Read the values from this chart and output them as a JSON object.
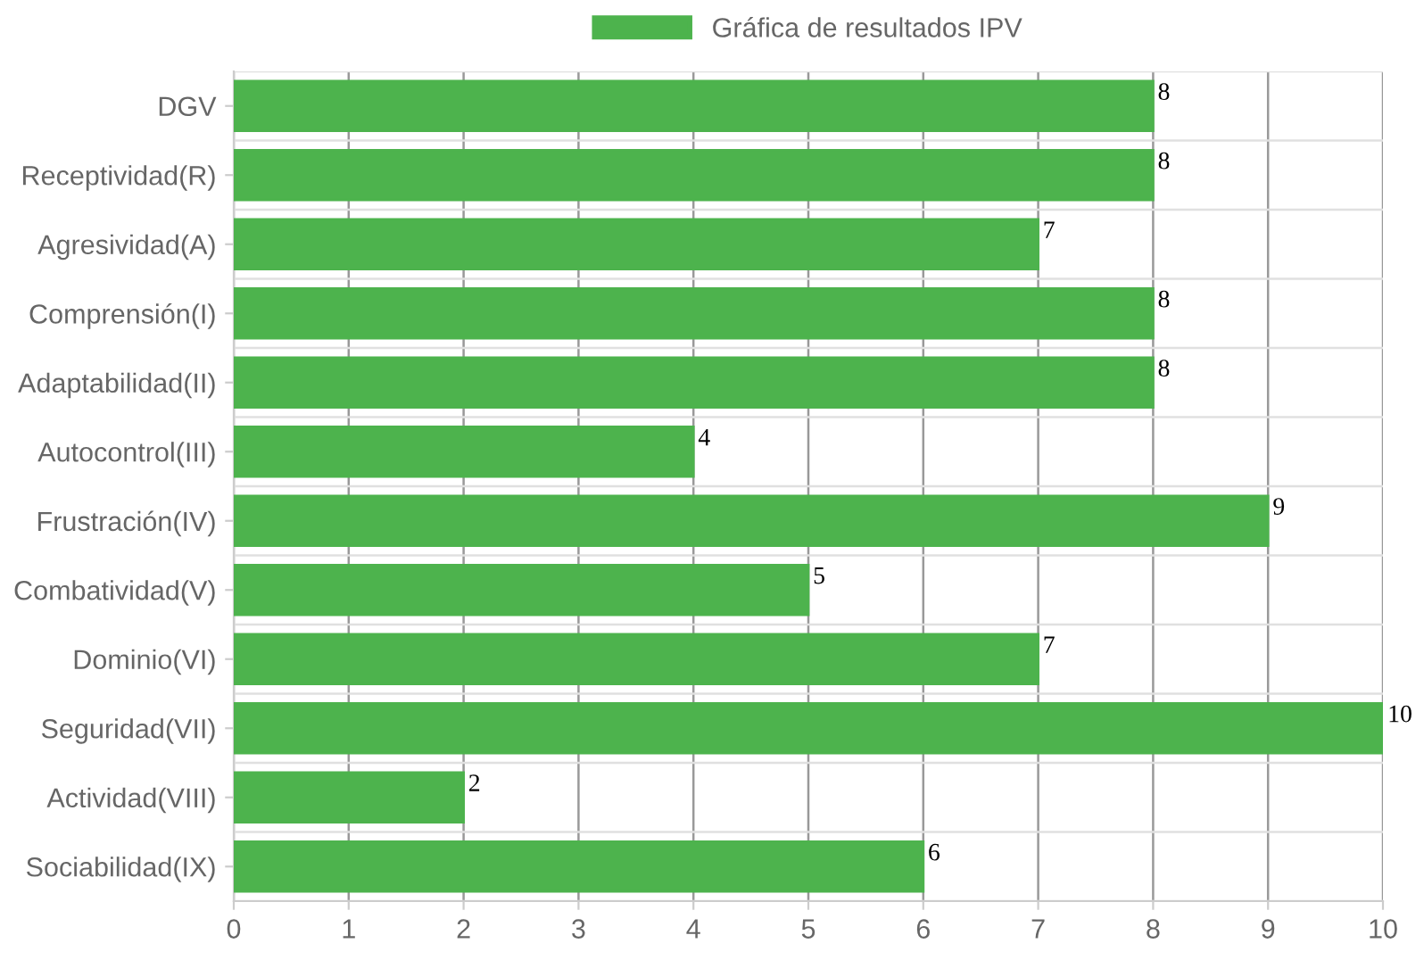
{
  "chart_data": {
    "type": "bar",
    "orientation": "horizontal",
    "categories": [
      "DGV",
      "Receptividad(R)",
      "Agresividad(A)",
      "Comprensión(I)",
      "Adaptabilidad(II)",
      "Autocontrol(III)",
      "Frustración(IV)",
      "Combatividad(V)",
      "Dominio(VI)",
      "Seguridad(VII)",
      "Actividad(VIII)",
      "Sociabilidad(IX)"
    ],
    "series": [
      {
        "name": "Gráfica de resultados IPV",
        "color": "#4db34d",
        "values": [
          8,
          8,
          7,
          8,
          8,
          4,
          9,
          5,
          7,
          10,
          2,
          6
        ]
      }
    ],
    "xlim": [
      0,
      10
    ],
    "xticks": [
      0,
      1,
      2,
      3,
      4,
      5,
      6,
      7,
      8,
      9,
      10
    ],
    "grid": true,
    "legend": "top",
    "data_labels": true
  }
}
